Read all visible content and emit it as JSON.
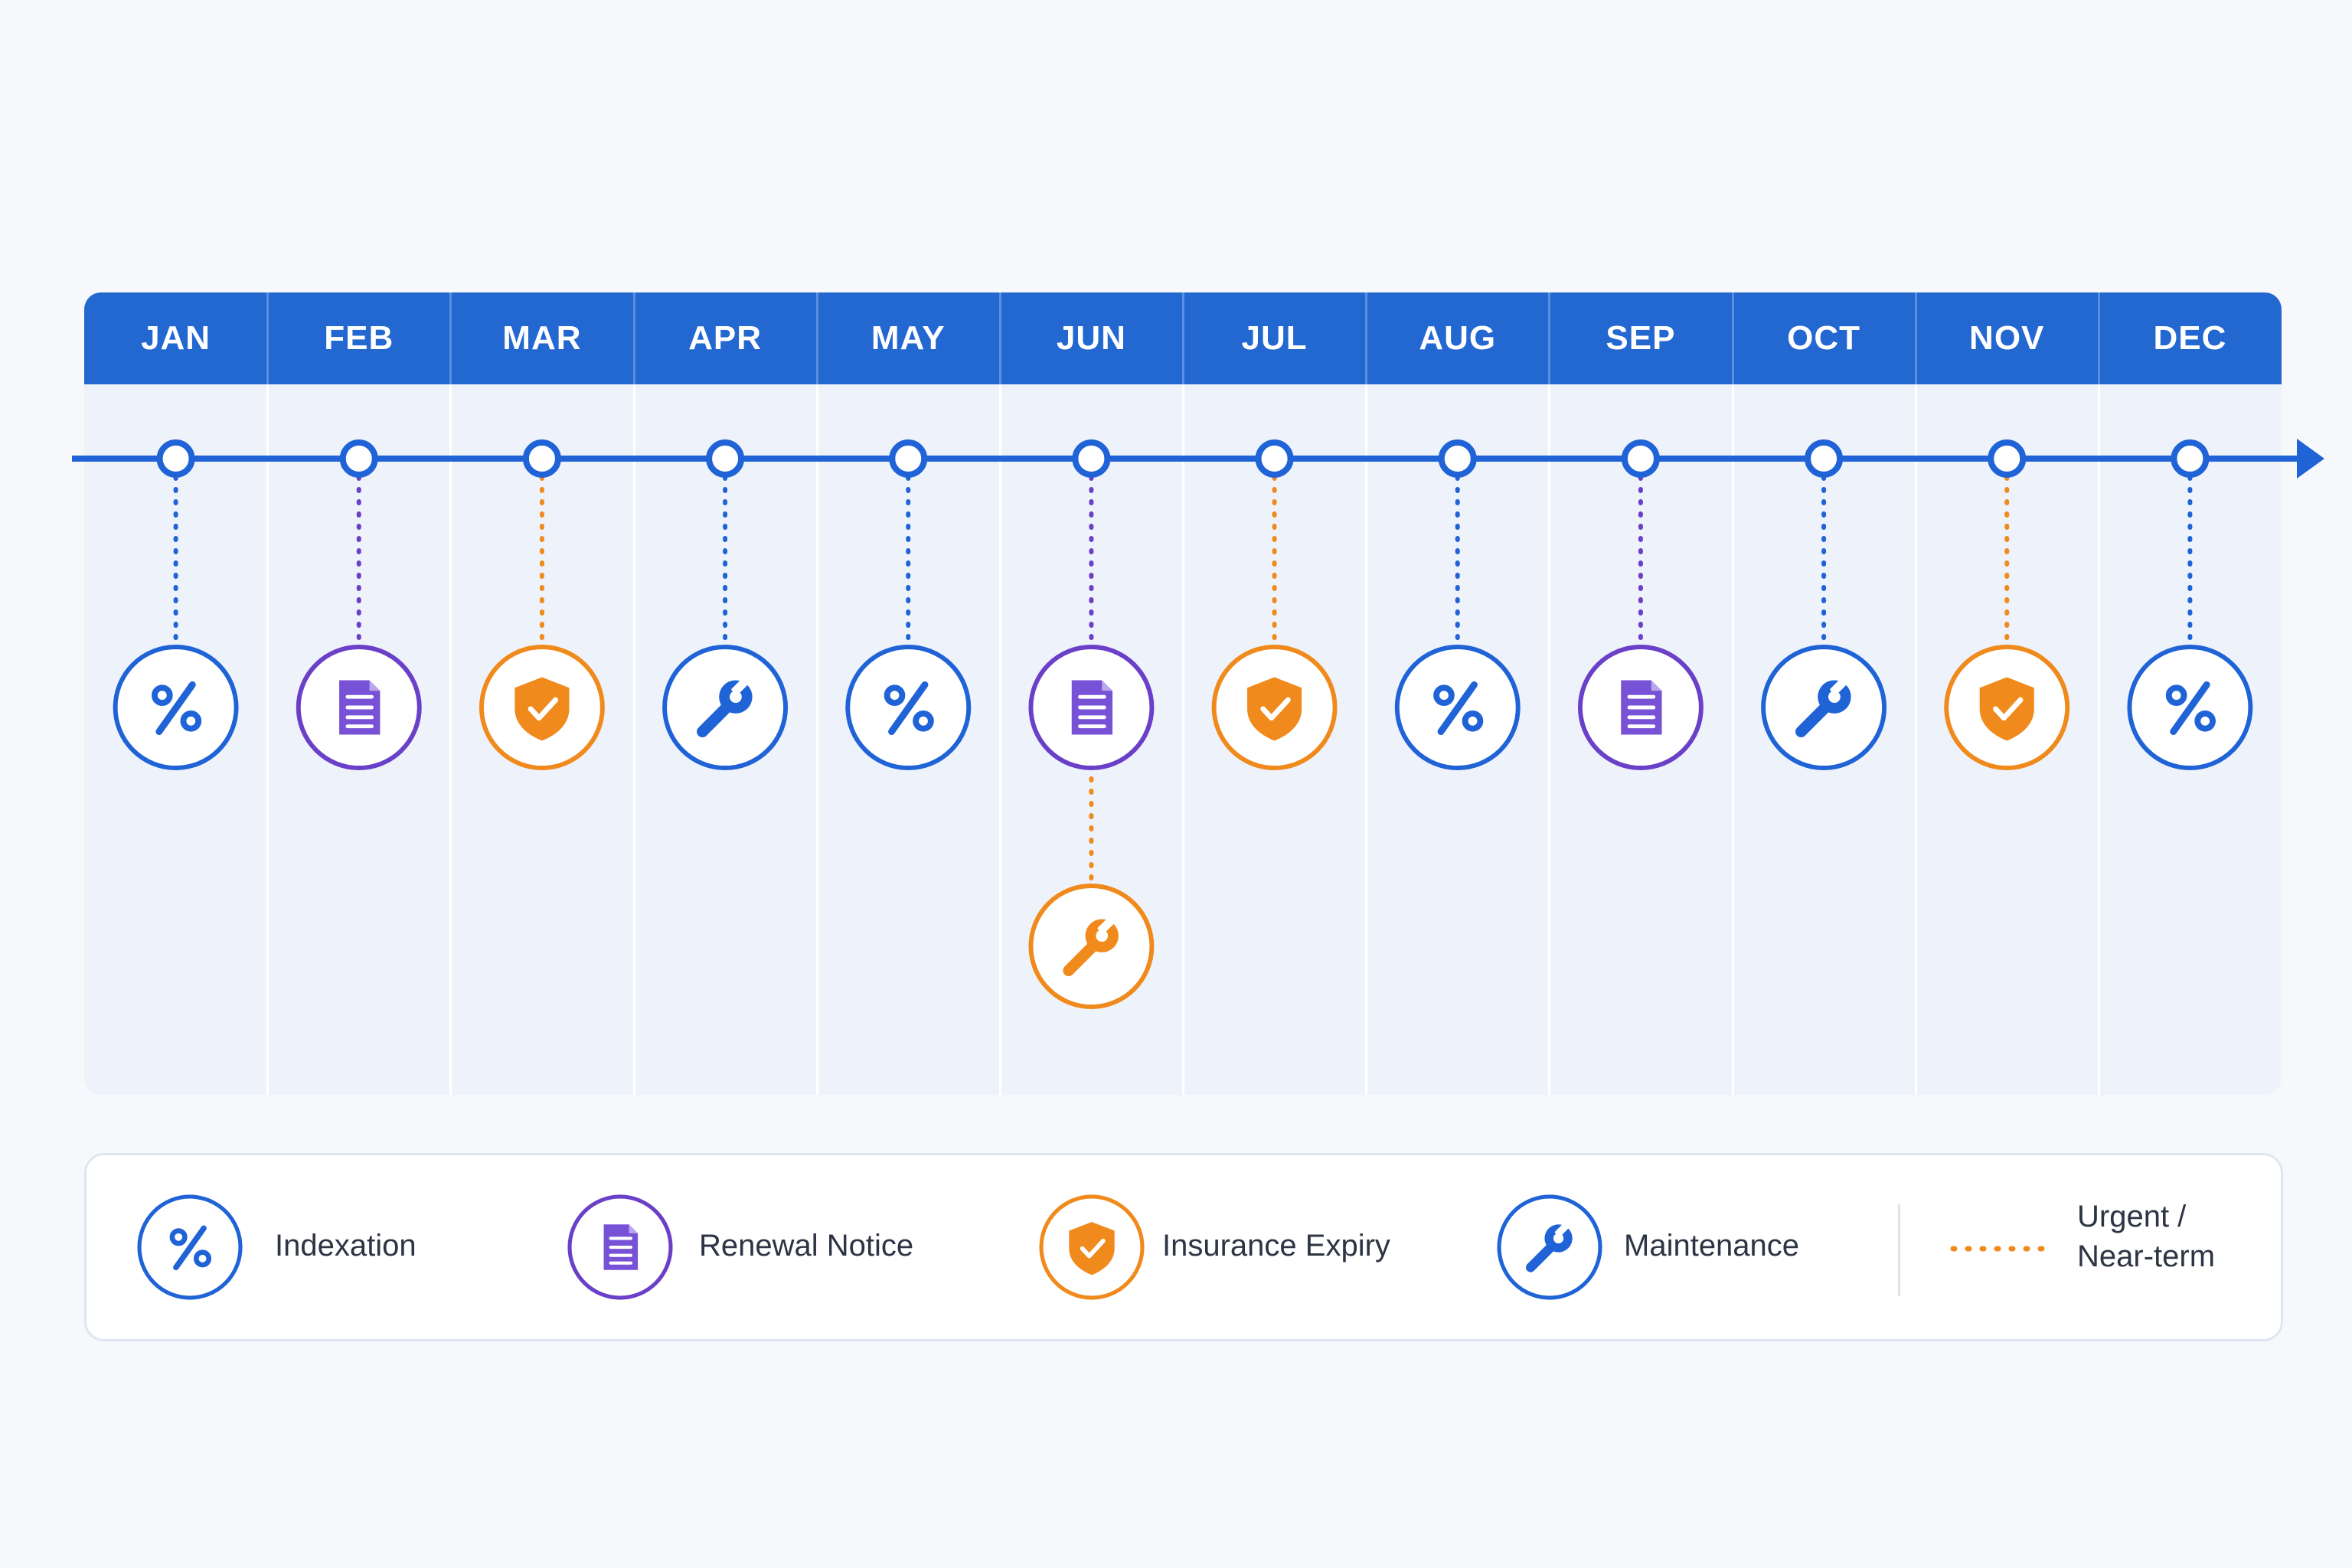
{
  "months": [
    "JAN",
    "FEB",
    "MAR",
    "APR",
    "MAY",
    "JUN",
    "JUL",
    "AUG",
    "SEP",
    "OCT",
    "NOV",
    "DEC"
  ],
  "colors": {
    "header": "#2367d1",
    "axis": "#1f63d6",
    "indexation": "#1f63d6",
    "renewal": "#6a40c8",
    "renewal_fill": "#7752d6",
    "insurance": "#f08a1c",
    "maintenance": "#1f63d6",
    "urgent": "#f08a1c"
  },
  "events": [
    {
      "month": "JAN",
      "type": "indexation",
      "icon": "percent-icon",
      "urgent": false
    },
    {
      "month": "FEB",
      "type": "renewal",
      "icon": "document-icon",
      "urgent": false
    },
    {
      "month": "MAR",
      "type": "insurance",
      "icon": "shield-check-icon",
      "urgent": true
    },
    {
      "month": "APR",
      "type": "maintenance",
      "icon": "wrench-icon",
      "urgent": false
    },
    {
      "month": "MAY",
      "type": "indexation",
      "icon": "percent-icon",
      "urgent": false
    },
    {
      "month": "JUN",
      "type": "renewal",
      "icon": "document-icon",
      "urgent": false
    },
    {
      "month": "JUN",
      "type": "maintenance",
      "icon": "wrench-icon",
      "urgent": true,
      "stacked": true
    },
    {
      "month": "JUL",
      "type": "insurance",
      "icon": "shield-check-icon",
      "urgent": true
    },
    {
      "month": "AUG",
      "type": "indexation",
      "icon": "percent-icon",
      "urgent": false
    },
    {
      "month": "SEP",
      "type": "renewal",
      "icon": "document-icon",
      "urgent": false
    },
    {
      "month": "OCT",
      "type": "maintenance",
      "icon": "wrench-icon",
      "urgent": false
    },
    {
      "month": "NOV",
      "type": "insurance",
      "icon": "shield-check-icon",
      "urgent": true
    },
    {
      "month": "DEC",
      "type": "indexation",
      "icon": "percent-icon",
      "urgent": false
    }
  ],
  "legend": {
    "indexation": "Indexation",
    "renewal": "Renewal Notice",
    "insurance": "Insurance Expiry",
    "maintenance": "Maintenance",
    "urgent_line1": "Urgent /",
    "urgent_line2": "Near-term"
  }
}
